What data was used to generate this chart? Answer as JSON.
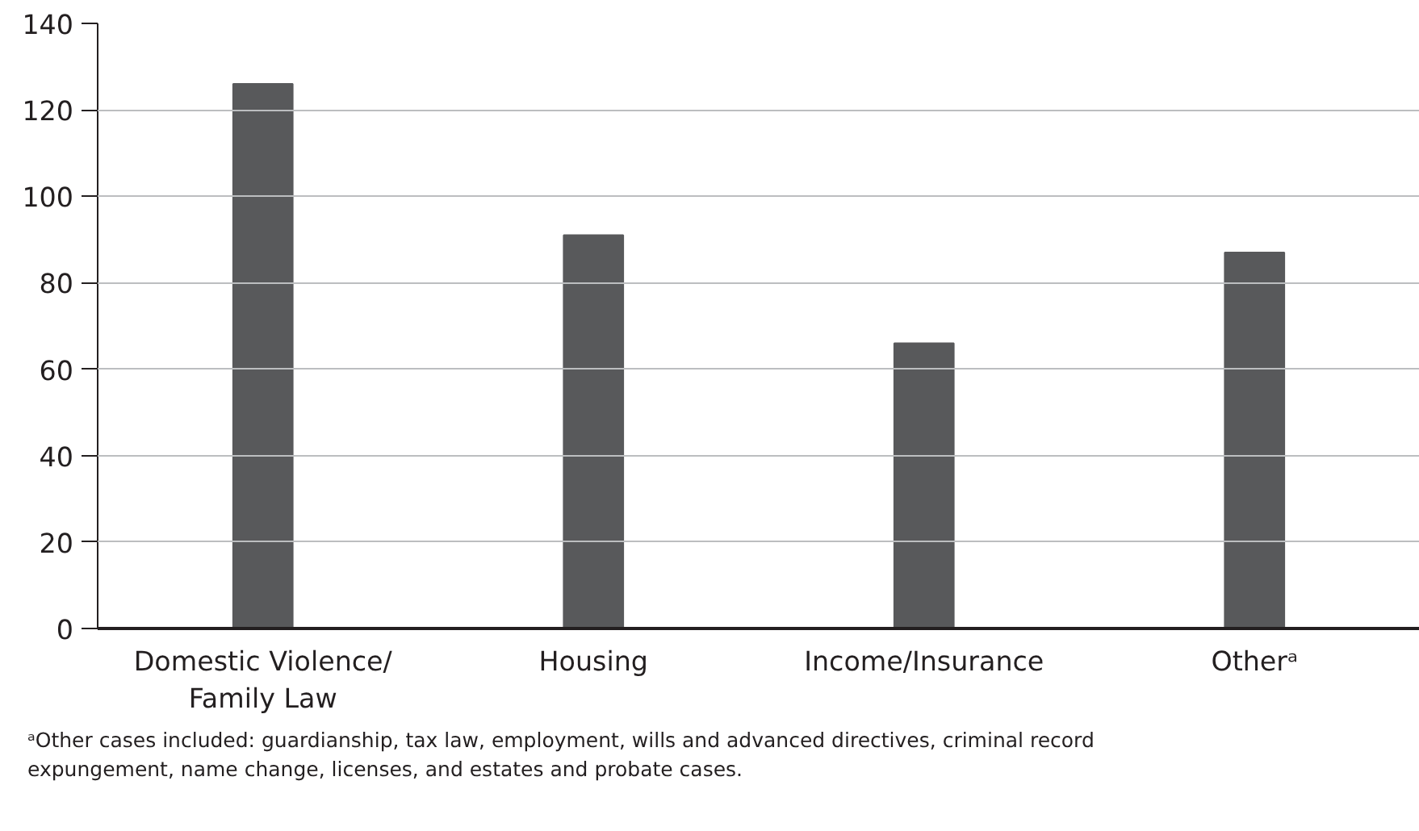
{
  "chart_data": {
    "type": "bar",
    "categories": [
      "Domestic Violence/\nFamily Law",
      "Housing",
      "Income/Insurance",
      "Otherᵃ"
    ],
    "values": [
      126,
      91,
      66,
      87
    ],
    "color": "#58595b",
    "ylim": [
      0,
      140
    ],
    "yticks": [
      0,
      20,
      40,
      60,
      80,
      100,
      120,
      140
    ],
    "grid": "y",
    "annotations": [
      "ᵃOther cases included: guardianship, tax law, employment, wills and advanced directives, criminal record\nexpungement, name change, licenses, and estates and probate cases."
    ]
  }
}
